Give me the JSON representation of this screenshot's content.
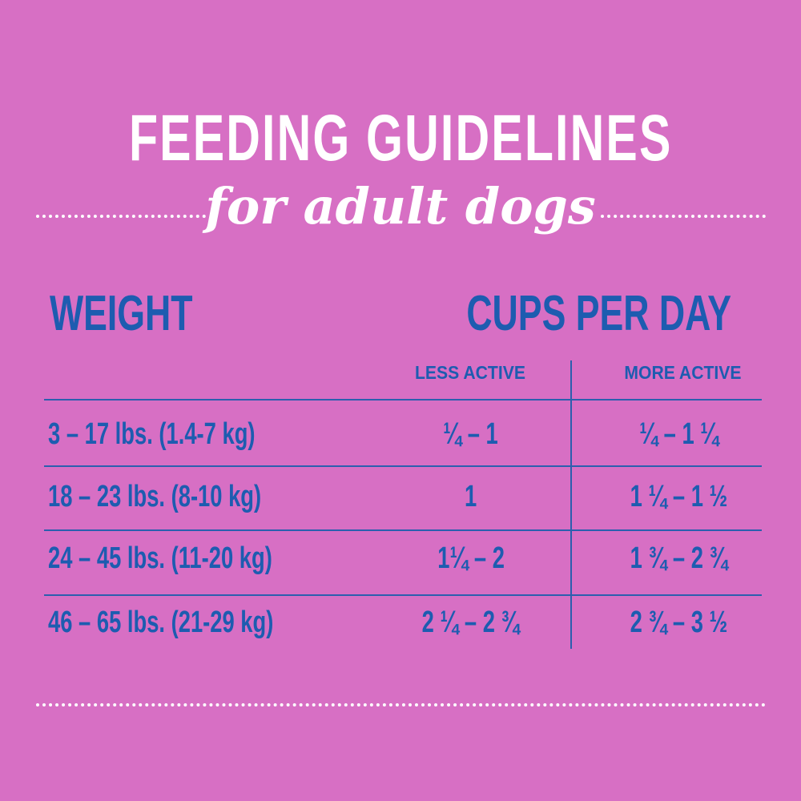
{
  "title": "FEEDING GUIDELINES",
  "subtitle": "for adult dogs",
  "table": {
    "weight_header": "WEIGHT",
    "cups_header": "CUPS PER DAY",
    "subheaders": [
      "LESS ACTIVE",
      "MORE ACTIVE"
    ],
    "rows": [
      {
        "weight": "3 – 17 lbs. (1.4-7 kg)",
        "less": "¼ – 1",
        "more": "¼ – 1 ¼"
      },
      {
        "weight": "18 – 23 lbs. (8-10 kg)",
        "less": "1",
        "more": "1 ¼ – 1 ½"
      },
      {
        "weight": "24 – 45 lbs. (11-20 kg)",
        "less": "1¼ – 2",
        "more": "1 ¾ – 2 ¾"
      },
      {
        "weight": "46 – 65 lbs. (21-29 kg)",
        "less": "2 ¼ – 2 ¾",
        "more": "2 ¾ – 3 ½"
      }
    ]
  },
  "colors": {
    "background": "#d76fc4",
    "text_blue": "#1d5cb0",
    "title_white": "#ffffff"
  }
}
